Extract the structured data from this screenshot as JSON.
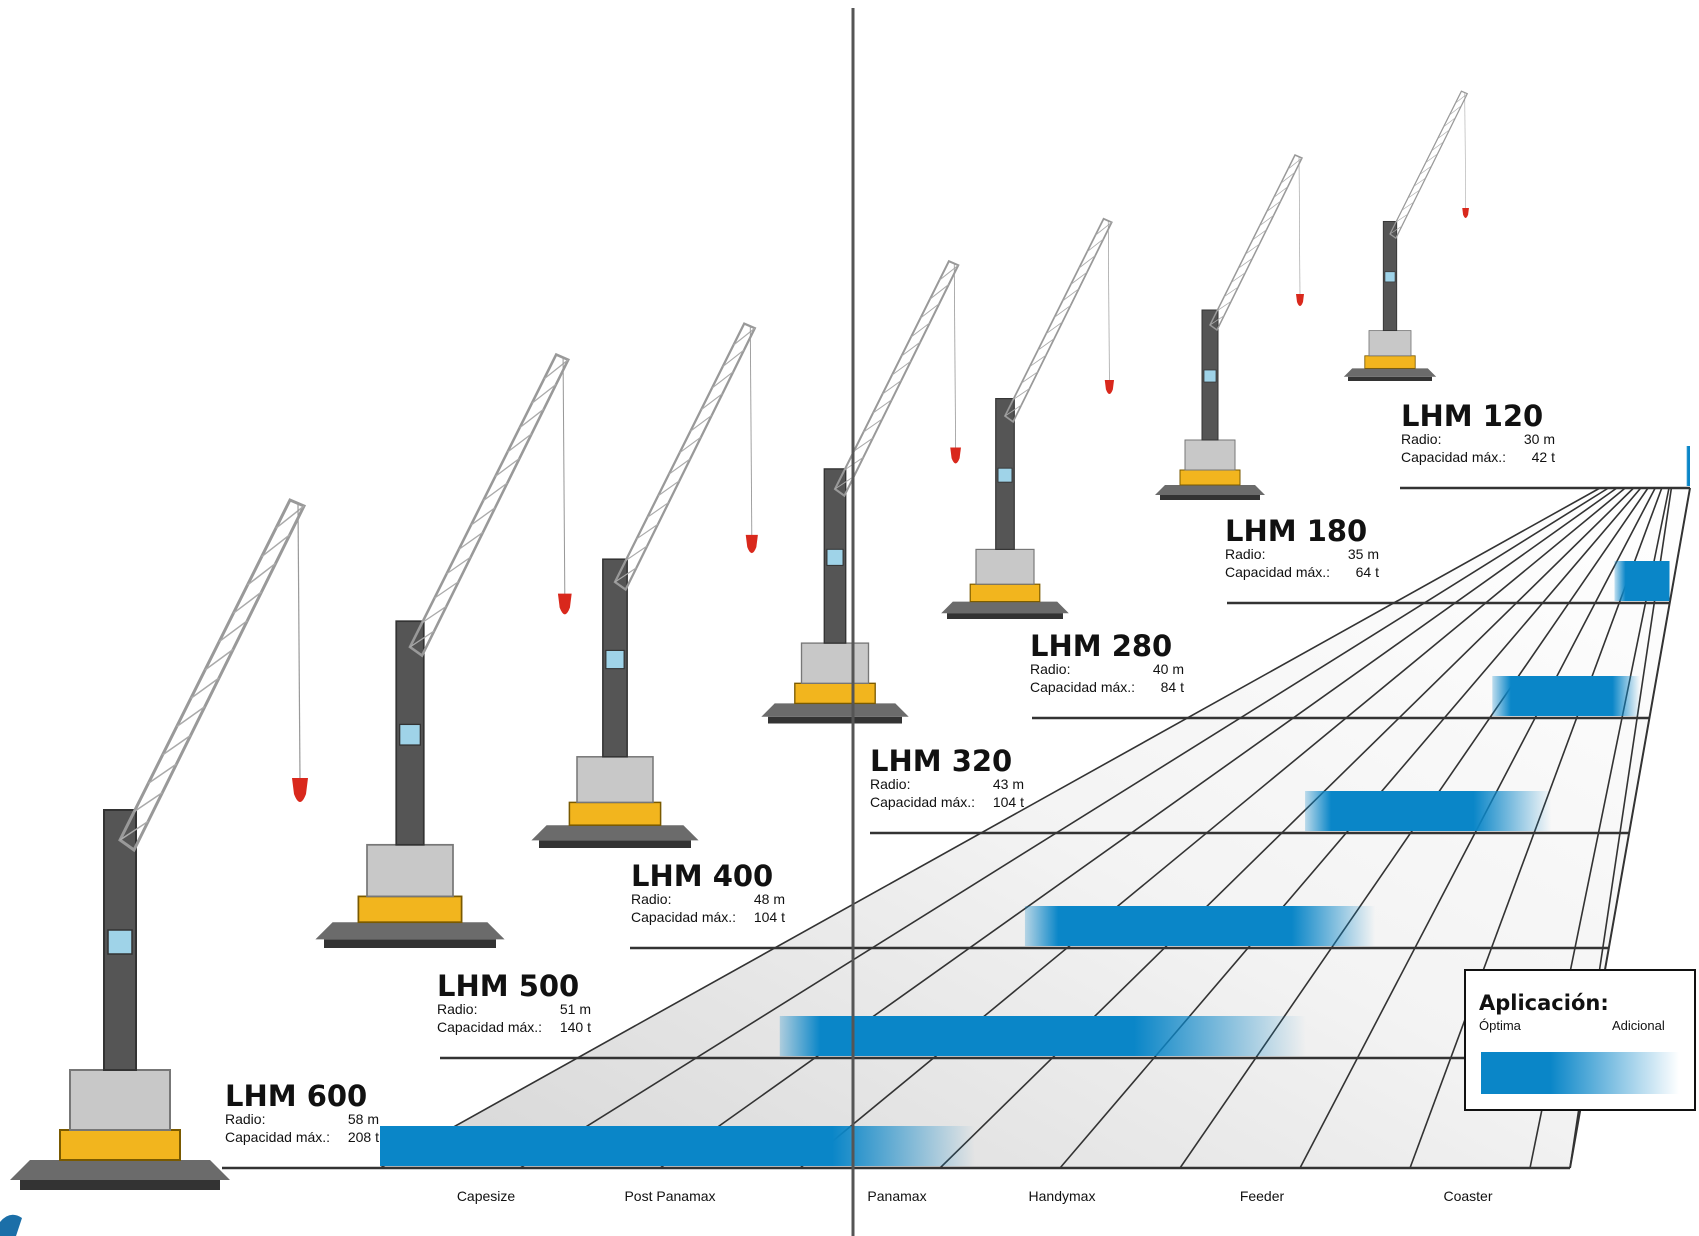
{
  "models": [
    {
      "name": "LHM 120",
      "radius_label": "Radio:",
      "radius": "30 m",
      "capacity_label": "Capacidad máx.:",
      "capacity": "42 t",
      "optimal_from": 0.96,
      "optimal_to": 1.0,
      "additional_to": 1.0
    },
    {
      "name": "LHM 180",
      "radius_label": "Radio:",
      "radius": "35 m",
      "capacity_label": "Capacidad máx.:",
      "capacity": "64 t",
      "optimal_from": 0.8,
      "optimal_to": 1.0,
      "additional_to": 1.0
    },
    {
      "name": "LHM 280",
      "radius_label": "Radio:",
      "radius": "40 m",
      "capacity_label": "Capacidad máx.:",
      "capacity": "84 t",
      "optimal_from": 0.66,
      "optimal_to": 0.92,
      "additional_to": 0.98
    },
    {
      "name": "LHM 320",
      "radius_label": "Radio:",
      "radius": "43 m",
      "capacity_label": "Capacidad máx.:",
      "capacity": "104 t",
      "optimal_from": 0.5,
      "optimal_to": 0.76,
      "additional_to": 0.88
    },
    {
      "name": "LHM 400",
      "radius_label": "Radio:",
      "radius": "48 m",
      "capacity_label": "Capacidad máx.:",
      "capacity": "104 t",
      "optimal_from": 0.3,
      "optimal_to": 0.62,
      "additional_to": 0.72
    },
    {
      "name": "LHM 500",
      "radius_label": "Radio:",
      "radius": "51 m",
      "capacity_label": "Capacidad máx.:",
      "capacity": "140 t",
      "optimal_from": 0.2,
      "optimal_to": 0.55,
      "additional_to": 0.72
    },
    {
      "name": "LHM 600",
      "radius_label": "Radio:",
      "radius": "58 m",
      "capacity_label": "Capacidad máx.:",
      "capacity": "208 t",
      "optimal_from": 0.0,
      "optimal_to": 0.38,
      "additional_to": 0.5
    }
  ],
  "ship_classes": [
    "Capesize",
    "Post Panamax",
    "Panamax",
    "Handymax",
    "Feeder",
    "Coaster"
  ],
  "legend": {
    "title": "Aplicación:",
    "optimal": "Óptima",
    "additional": "Adicional"
  },
  "colors": {
    "bar": "#0a86c8",
    "crane_yellow": "#f2b51e",
    "hook_red": "#d9281c",
    "grid": "#333333",
    "floor": "#eeeeee"
  }
}
